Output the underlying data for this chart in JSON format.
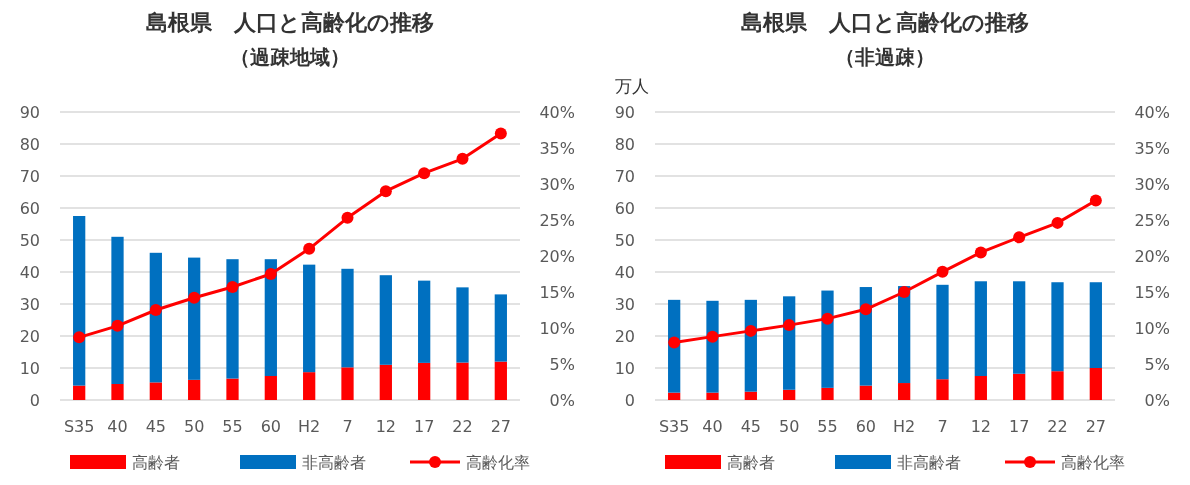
{
  "chart_data": [
    {
      "type": "bar",
      "title": "島根県　人口と高齢化の推移",
      "subtitle": "（過疎地域）",
      "stacked": true,
      "grid": "y",
      "legend": "bottom",
      "marker": "circle",
      "categories": [
        "S35",
        "40",
        "45",
        "50",
        "55",
        "60",
        "H2",
        "7",
        "12",
        "17",
        "22",
        "27"
      ],
      "ylim": [
        0,
        90
      ],
      "yticks": [
        0,
        10,
        20,
        30,
        40,
        50,
        60,
        70,
        80,
        90
      ],
      "y2lim": [
        0,
        40
      ],
      "y2ticks": [
        {
          "value": 0,
          "label": "0%"
        },
        {
          "value": 5,
          "label": "5%"
        },
        {
          "value": 10,
          "label": "10%"
        },
        {
          "value": 15,
          "label": "15%"
        },
        {
          "value": 20,
          "label": "20%"
        },
        {
          "value": 25,
          "label": "25%"
        },
        {
          "value": 30,
          "label": "30%"
        },
        {
          "value": 35,
          "label": "35%"
        },
        {
          "value": 40,
          "label": "40%"
        }
      ],
      "series": [
        {
          "name": "高齢者",
          "color": "#ff0000",
          "values": [
            4.5,
            5,
            5.5,
            6.3,
            6.7,
            7.5,
            8.7,
            10.2,
            11,
            11.6,
            11.7,
            12
          ]
        },
        {
          "name": "非高齢者",
          "color": "#0070c0",
          "values": [
            53,
            46,
            40.5,
            38.2,
            37.3,
            36.5,
            33.6,
            30.8,
            28,
            25.7,
            23.5,
            21
          ]
        },
        {
          "name": "高齢化率",
          "type": "line",
          "axis": "y2",
          "color": "#ff0000",
          "values": [
            8.7,
            10.3,
            12.5,
            14.2,
            15.7,
            17.5,
            21,
            25.3,
            29,
            31.5,
            33.5,
            37
          ]
        }
      ]
    },
    {
      "type": "bar",
      "title": "島根県　人口と高齢化の推移",
      "subtitle": "（非過疎）",
      "ylabel": "万人",
      "stacked": true,
      "grid": "y",
      "legend": "bottom",
      "marker": "circle",
      "categories": [
        "S35",
        "40",
        "45",
        "50",
        "55",
        "60",
        "H2",
        "7",
        "12",
        "17",
        "22",
        "27"
      ],
      "ylim": [
        0,
        90
      ],
      "yticks": [
        0,
        10,
        20,
        30,
        40,
        50,
        60,
        70,
        80,
        90
      ],
      "y2lim": [
        0,
        40
      ],
      "y2ticks": [
        {
          "value": 0,
          "label": "0%"
        },
        {
          "value": 5,
          "label": "5%"
        },
        {
          "value": 10,
          "label": "10%"
        },
        {
          "value": 15,
          "label": "15%"
        },
        {
          "value": 20,
          "label": "20%"
        },
        {
          "value": 25,
          "label": "25%"
        },
        {
          "value": 30,
          "label": "30%"
        },
        {
          "value": 35,
          "label": "35%"
        },
        {
          "value": 40,
          "label": "40%"
        }
      ],
      "series": [
        {
          "name": "高齢者",
          "color": "#ff0000",
          "values": [
            2.3,
            2.3,
            2.6,
            3.2,
            3.8,
            4.5,
            5.3,
            6.5,
            7.5,
            8.2,
            9,
            10
          ]
        },
        {
          "name": "非高齢者",
          "color": "#0070c0",
          "values": [
            29,
            28.7,
            28.7,
            29.2,
            30.4,
            30.8,
            30.3,
            29.5,
            29.6,
            28.9,
            27.8,
            26.8
          ]
        },
        {
          "name": "高齢化率",
          "type": "line",
          "axis": "y2",
          "color": "#ff0000",
          "values": [
            8,
            8.8,
            9.6,
            10.4,
            11.3,
            12.6,
            15,
            17.8,
            20.5,
            22.6,
            24.6,
            27.7
          ]
        }
      ]
    }
  ]
}
